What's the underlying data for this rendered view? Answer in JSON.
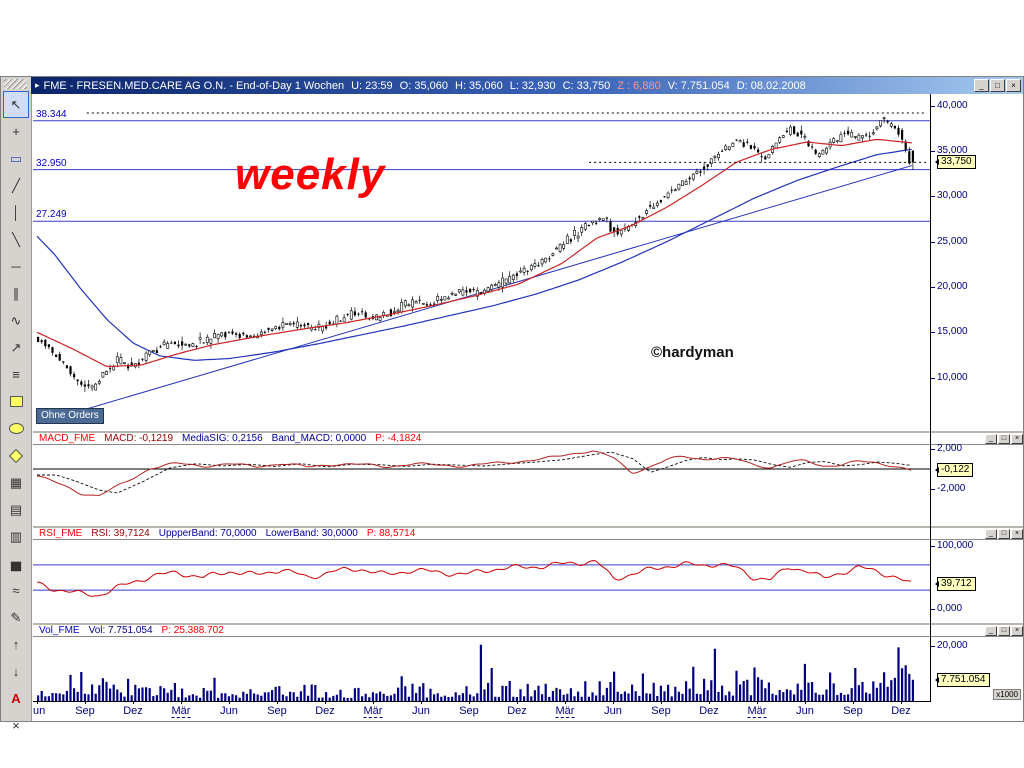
{
  "window": {
    "title_segments": [
      {
        "text": "FME - FRESEN.MED.CARE AG O.N. - End-of-Day 1 Wochen",
        "color": "#FFFFFF"
      },
      {
        "text": "U: 23:59",
        "color": "#FFFFFF"
      },
      {
        "text": "O: 35,060",
        "color": "#FFFFFF"
      },
      {
        "text": "H: 35,060",
        "color": "#FFFFFF"
      },
      {
        "text": "L: 32,930",
        "color": "#FFFFFF"
      },
      {
        "text": "C: 33,750",
        "color": "#FFFFFF"
      },
      {
        "text": "Z : 6,880",
        "color": "#FF9688"
      },
      {
        "text": "V: 7.751.054",
        "color": "#FFFFFF"
      },
      {
        "text": "D: 08.02.2008",
        "color": "#FFFFFF"
      }
    ],
    "controls": {
      "minimize": "_",
      "maximize": "□",
      "close": "×"
    }
  },
  "toolbar": {
    "items": [
      {
        "name": "select-tool",
        "glyph": "↖",
        "selected": true
      },
      {
        "name": "crosshair-tool",
        "glyph": "+"
      },
      {
        "name": "zoom-box-tool",
        "glyph": "▭",
        "color": "#3355BB"
      },
      {
        "name": "trendline-tool",
        "glyph": "╱"
      },
      {
        "name": "vertical-line-tool",
        "glyph": "│"
      },
      {
        "name": "ray-line-tool",
        "glyph": "╲"
      },
      {
        "name": "horizontal-line-tool",
        "glyph": "─"
      },
      {
        "name": "parallel-channel-tool",
        "glyph": "∥"
      },
      {
        "name": "freehand-line-tool",
        "glyph": "∿"
      },
      {
        "name": "arrow-line-tool",
        "glyph": "↗"
      },
      {
        "name": "fibonacci-tool",
        "glyph": "≡"
      },
      {
        "name": "rectangle-shape-tool",
        "shape": "square"
      },
      {
        "name": "ellipse-shape-tool",
        "shape": "ellipse"
      },
      {
        "name": "diamond-shape-tool",
        "shape": "diamond"
      },
      {
        "name": "grid-tool",
        "glyph": "▦"
      },
      {
        "name": "table-tool",
        "glyph": "▤"
      },
      {
        "name": "columns-tool",
        "glyph": "▥"
      },
      {
        "name": "histogram-tool",
        "glyph": "▅"
      },
      {
        "name": "wave-tool",
        "glyph": "≈"
      },
      {
        "name": "pencil-tool",
        "glyph": "✎"
      },
      {
        "name": "arrow-up-tool",
        "glyph": "↑"
      },
      {
        "name": "arrow-down-tool",
        "glyph": "↓"
      },
      {
        "name": "text-tool",
        "glyph": "A",
        "color": "#CC0000",
        "bold": true
      },
      {
        "name": "erase-tool",
        "glyph": "×"
      }
    ]
  },
  "main_chart": {
    "watermark": "weekly",
    "credit": "©hardyman",
    "orders_badge": "Ohne Orders",
    "last_price_badge": "33,750"
  },
  "macd_panel": {
    "header": [
      {
        "text": "MACD_FME",
        "color": "#FF0000"
      },
      {
        "text": "MACD: -0,1219",
        "color": "#990000"
      },
      {
        "text": "MediaSIG: 0,2156",
        "color": "#000099"
      },
      {
        "text": "Band_MACD: 0,0000",
        "color": "#000099"
      },
      {
        "text": "P: -4,1824",
        "color": "#FF0000"
      }
    ],
    "badge": "-0,122"
  },
  "rsi_panel": {
    "header": [
      {
        "text": "RSI_FME",
        "color": "#FF0000"
      },
      {
        "text": "RSI: 39,7124",
        "color": "#990000"
      },
      {
        "text": "UppperBand: 70,0000",
        "color": "#000099"
      },
      {
        "text": "LowerBand: 30,0000",
        "color": "#000099"
      },
      {
        "text": "P: 88,5714",
        "color": "#FF0000"
      }
    ],
    "badge": "39,712"
  },
  "vol_panel": {
    "header": [
      {
        "text": "Vol_FME",
        "color": "#0000CC"
      },
      {
        "text": "Vol: 7.751.054",
        "color": "#000080"
      },
      {
        "text": "P: 25.388.702",
        "color": "#FF0000"
      }
    ],
    "badge": "7.751.054",
    "scale_note": "x1000"
  },
  "time_axis": {
    "labels": [
      "un",
      "Sep",
      "Dez",
      "Mär",
      "Jun",
      "Sep",
      "Dez",
      "Mär",
      "Jun",
      "Sep",
      "Dez",
      "Mär",
      "Jun",
      "Sep",
      "Dez",
      "Mär",
      "Jun",
      "Sep",
      "Dez"
    ]
  },
  "chart_data": {
    "type": "candlestick",
    "instrument": "FME - FRESEN.MED.CARE AG O.N.",
    "interval": "End-of-Day 1 Wochen (weekly)",
    "last_bar": {
      "time": "23:59",
      "open": 35.06,
      "high": 35.06,
      "low": 32.93,
      "close": 33.75,
      "change": 6.88,
      "volume": 7751054,
      "date": "08.02.2008"
    },
    "candle_count": 244,
    "price_axis": {
      "range": [
        4.1,
        41.3
      ],
      "ticks": [
        {
          "v": 40,
          "label": "40,000"
        },
        {
          "v": 35,
          "label": "35,000"
        },
        {
          "v": 30,
          "label": "30,000"
        },
        {
          "v": 25,
          "label": "25,000"
        },
        {
          "v": 20,
          "label": "20,000"
        },
        {
          "v": 15,
          "label": "15,000"
        },
        {
          "v": 10,
          "label": "10,000"
        }
      ]
    },
    "levels": [
      {
        "value": 38.344,
        "label": "38.344"
      },
      {
        "value": 32.95,
        "label": "32.950"
      },
      {
        "value": 27.249,
        "label": "27.249"
      }
    ],
    "dashed_levels": [
      {
        "value": 39.2,
        "from": 0.06
      },
      {
        "value": 33.75,
        "from": 0.62
      }
    ],
    "price_anchors": [
      [
        0,
        14.6
      ],
      [
        0.015,
        13.4
      ],
      [
        0.03,
        11.8
      ],
      [
        0.05,
        9.6
      ],
      [
        0.065,
        8.6
      ],
      [
        0.08,
        10.6
      ],
      [
        0.095,
        12.0
      ],
      [
        0.11,
        11.0
      ],
      [
        0.13,
        12.6
      ],
      [
        0.155,
        13.8
      ],
      [
        0.18,
        13.6
      ],
      [
        0.2,
        14.3
      ],
      [
        0.225,
        15.0
      ],
      [
        0.25,
        14.4
      ],
      [
        0.275,
        15.6
      ],
      [
        0.3,
        16.1
      ],
      [
        0.32,
        15.2
      ],
      [
        0.345,
        16.3
      ],
      [
        0.37,
        17.2
      ],
      [
        0.39,
        16.5
      ],
      [
        0.41,
        17.4
      ],
      [
        0.43,
        18.3
      ],
      [
        0.45,
        18.0
      ],
      [
        0.47,
        19.0
      ],
      [
        0.49,
        19.6
      ],
      [
        0.51,
        19.2
      ],
      [
        0.53,
        20.4
      ],
      [
        0.55,
        21.3
      ],
      [
        0.57,
        22.4
      ],
      [
        0.59,
        23.6
      ],
      [
        0.61,
        25.2
      ],
      [
        0.63,
        26.8
      ],
      [
        0.65,
        27.6
      ],
      [
        0.665,
        25.9
      ],
      [
        0.68,
        26.8
      ],
      [
        0.7,
        28.6
      ],
      [
        0.72,
        30.0
      ],
      [
        0.74,
        31.4
      ],
      [
        0.76,
        32.8
      ],
      [
        0.78,
        34.6
      ],
      [
        0.8,
        36.2
      ],
      [
        0.82,
        35.4
      ],
      [
        0.835,
        33.9
      ],
      [
        0.85,
        36.4
      ],
      [
        0.865,
        37.4
      ],
      [
        0.88,
        36.2
      ],
      [
        0.895,
        34.3
      ],
      [
        0.91,
        35.8
      ],
      [
        0.925,
        37.2
      ],
      [
        0.94,
        36.6
      ],
      [
        0.955,
        37.0
      ],
      [
        0.97,
        38.6
      ],
      [
        0.985,
        37.6
      ],
      [
        1,
        33.9
      ]
    ],
    "red_ma_anchors": [
      [
        0,
        15.0
      ],
      [
        0.04,
        13.2
      ],
      [
        0.08,
        11.2
      ],
      [
        0.12,
        11.4
      ],
      [
        0.16,
        12.6
      ],
      [
        0.2,
        13.6
      ],
      [
        0.25,
        14.5
      ],
      [
        0.3,
        15.3
      ],
      [
        0.35,
        16.0
      ],
      [
        0.4,
        16.9
      ],
      [
        0.45,
        17.9
      ],
      [
        0.5,
        19.0
      ],
      [
        0.55,
        20.3
      ],
      [
        0.6,
        22.6
      ],
      [
        0.64,
        25.4
      ],
      [
        0.68,
        26.8
      ],
      [
        0.72,
        28.8
      ],
      [
        0.76,
        31.2
      ],
      [
        0.8,
        33.8
      ],
      [
        0.84,
        35.2
      ],
      [
        0.88,
        36.0
      ],
      [
        0.92,
        35.6
      ],
      [
        0.96,
        36.3
      ],
      [
        1,
        35.9
      ]
    ],
    "blue_ma_anchors": [
      [
        0,
        25.6
      ],
      [
        0.02,
        23.6
      ],
      [
        0.05,
        19.8
      ],
      [
        0.08,
        16.4
      ],
      [
        0.11,
        13.8
      ],
      [
        0.14,
        12.4
      ],
      [
        0.18,
        11.9
      ],
      [
        0.22,
        12.1
      ],
      [
        0.27,
        12.8
      ],
      [
        0.32,
        13.7
      ],
      [
        0.37,
        14.7
      ],
      [
        0.42,
        15.7
      ],
      [
        0.47,
        16.8
      ],
      [
        0.52,
        17.9
      ],
      [
        0.57,
        19.2
      ],
      [
        0.62,
        20.8
      ],
      [
        0.67,
        22.8
      ],
      [
        0.72,
        25.0
      ],
      [
        0.77,
        27.4
      ],
      [
        0.82,
        29.8
      ],
      [
        0.87,
        31.8
      ],
      [
        0.92,
        33.4
      ],
      [
        0.96,
        34.6
      ],
      [
        1,
        35.2
      ]
    ],
    "trendline": [
      [
        0.01,
        5.2
      ],
      [
        1,
        33.4
      ]
    ],
    "macd": {
      "range": [
        -5.7,
        2.4
      ],
      "ticks": [
        {
          "v": 2,
          "label": "2,000"
        },
        {
          "v": -2,
          "label": "-2,000"
        }
      ],
      "last": -0.122,
      "anchors": [
        [
          0,
          -0.7
        ],
        [
          0.02,
          -1.3
        ],
        [
          0.05,
          -2.4
        ],
        [
          0.07,
          -2.7
        ],
        [
          0.1,
          -1.4
        ],
        [
          0.13,
          0.1
        ],
        [
          0.16,
          0.55
        ],
        [
          0.19,
          0.3
        ],
        [
          0.22,
          0.5
        ],
        [
          0.25,
          0.25
        ],
        [
          0.28,
          0.55
        ],
        [
          0.31,
          0.2
        ],
        [
          0.34,
          0.5
        ],
        [
          0.37,
          0.45
        ],
        [
          0.4,
          0.25
        ],
        [
          0.43,
          0.5
        ],
        [
          0.46,
          0.4
        ],
        [
          0.49,
          0.3
        ],
        [
          0.52,
          0.55
        ],
        [
          0.55,
          0.75
        ],
        [
          0.58,
          1.0
        ],
        [
          0.61,
          1.5
        ],
        [
          0.635,
          1.85
        ],
        [
          0.66,
          1.1
        ],
        [
          0.68,
          -0.4
        ],
        [
          0.7,
          0.2
        ],
        [
          0.72,
          0.9
        ],
        [
          0.74,
          1.25
        ],
        [
          0.76,
          1.0
        ],
        [
          0.78,
          1.1
        ],
        [
          0.8,
          0.95
        ],
        [
          0.82,
          0.45
        ],
        [
          0.84,
          0.15
        ],
        [
          0.86,
          0.7
        ],
        [
          0.88,
          0.8
        ],
        [
          0.9,
          0.3
        ],
        [
          0.92,
          0.45
        ],
        [
          0.94,
          0.75
        ],
        [
          0.96,
          0.6
        ],
        [
          0.98,
          0.35
        ],
        [
          1,
          -0.12
        ]
      ]
    },
    "rsi": {
      "range": [
        -22.2,
        109.5
      ],
      "bands": [
        70,
        30
      ],
      "ticks": [
        {
          "v": 100,
          "label": "100,000"
        },
        {
          "v": 0,
          "label": "0,000"
        }
      ],
      "last": 39.712,
      "anchors": [
        [
          0,
          40
        ],
        [
          0.02,
          32
        ],
        [
          0.05,
          24
        ],
        [
          0.07,
          22
        ],
        [
          0.1,
          38
        ],
        [
          0.13,
          52
        ],
        [
          0.16,
          58
        ],
        [
          0.19,
          50
        ],
        [
          0.22,
          60
        ],
        [
          0.25,
          54
        ],
        [
          0.28,
          63
        ],
        [
          0.31,
          50
        ],
        [
          0.34,
          60
        ],
        [
          0.37,
          64
        ],
        [
          0.4,
          54
        ],
        [
          0.43,
          62
        ],
        [
          0.46,
          58
        ],
        [
          0.49,
          55
        ],
        [
          0.52,
          63
        ],
        [
          0.55,
          66
        ],
        [
          0.58,
          68
        ],
        [
          0.61,
          73
        ],
        [
          0.64,
          75
        ],
        [
          0.66,
          48
        ],
        [
          0.68,
          55
        ],
        [
          0.7,
          62
        ],
        [
          0.72,
          68
        ],
        [
          0.74,
          71
        ],
        [
          0.76,
          69
        ],
        [
          0.78,
          72
        ],
        [
          0.8,
          65
        ],
        [
          0.82,
          50
        ],
        [
          0.84,
          47
        ],
        [
          0.86,
          66
        ],
        [
          0.88,
          62
        ],
        [
          0.9,
          48
        ],
        [
          0.92,
          58
        ],
        [
          0.94,
          66
        ],
        [
          0.96,
          60
        ],
        [
          0.98,
          52
        ],
        [
          1,
          39.7
        ]
      ]
    },
    "volume": {
      "range": [
        0,
        23.3
      ],
      "unit": "x1000",
      "ticks": [
        {
          "v": 20,
          "label": "20,000"
        }
      ],
      "last": 7.751,
      "env_anchors": [
        [
          0,
          4.5
        ],
        [
          0.05,
          6.0
        ],
        [
          0.1,
          4.5
        ],
        [
          0.15,
          3.6
        ],
        [
          0.2,
          3.2
        ],
        [
          0.25,
          3.0
        ],
        [
          0.3,
          3.3
        ],
        [
          0.35,
          3.1
        ],
        [
          0.4,
          3.5
        ],
        [
          0.45,
          3.6
        ],
        [
          0.5,
          4.8
        ],
        [
          0.55,
          3.8
        ],
        [
          0.6,
          4.0
        ],
        [
          0.65,
          4.6
        ],
        [
          0.7,
          4.4
        ],
        [
          0.75,
          5.0
        ],
        [
          0.8,
          5.4
        ],
        [
          0.85,
          6.2
        ],
        [
          0.9,
          6.0
        ],
        [
          0.95,
          6.8
        ],
        [
          1,
          7.7
        ]
      ],
      "spikes": [
        [
          0.035,
          9.5
        ],
        [
          0.2,
          8.5
        ],
        [
          0.415,
          9.0
        ],
        [
          0.505,
          20.5
        ],
        [
          0.52,
          12
        ],
        [
          0.69,
          10
        ],
        [
          0.75,
          12.5
        ],
        [
          0.8,
          11
        ],
        [
          0.875,
          13.5
        ],
        [
          0.935,
          12
        ],
        [
          0.985,
          19.5
        ]
      ]
    }
  }
}
